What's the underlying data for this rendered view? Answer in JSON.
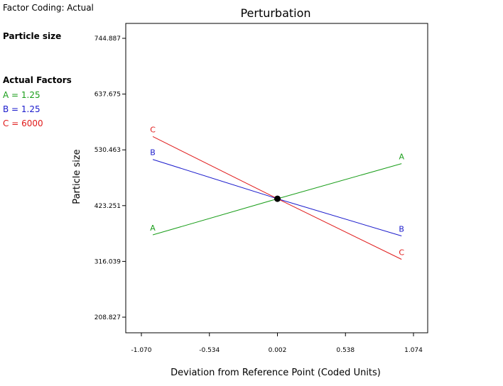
{
  "sidebar": {
    "coding_label": "Factor Coding: Actual",
    "response_label": "Particle size",
    "factors_heading": "Actual Factors",
    "factors": [
      {
        "text": "A = 1.25",
        "color": "#1a9e1a"
      },
      {
        "text": "B = 1.25",
        "color": "#1a1acc"
      },
      {
        "text": "C = 6000",
        "color": "#e01a1a"
      }
    ]
  },
  "chart_data": {
    "type": "line",
    "title": "Perturbation",
    "xlabel": "Deviation from Reference Point (Coded Units)",
    "ylabel": "Particle size",
    "xlim": [
      -1.07,
      1.074
    ],
    "ylim": [
      208.827,
      744.887
    ],
    "x_ticks": [
      "-1.070",
      "-0.534",
      "0.002",
      "0.538",
      "1.074"
    ],
    "y_ticks": [
      "208.827",
      "316.039",
      "423.251",
      "530.463",
      "637.675",
      "744.887"
    ],
    "reference_point": {
      "x": 0.002,
      "y": 436.5
    },
    "series": [
      {
        "name": "A",
        "color": "#1a9e1a",
        "x": [
          -0.98,
          0.002,
          0.98
        ],
        "y": [
          367,
          436.5,
          504
        ]
      },
      {
        "name": "B",
        "color": "#1a1acc",
        "x": [
          -0.98,
          0.002,
          0.98
        ],
        "y": [
          512,
          436.5,
          365
        ]
      },
      {
        "name": "C",
        "color": "#e01a1a",
        "x": [
          -0.98,
          0.002,
          0.98
        ],
        "y": [
          556,
          436.5,
          320
        ]
      }
    ]
  }
}
